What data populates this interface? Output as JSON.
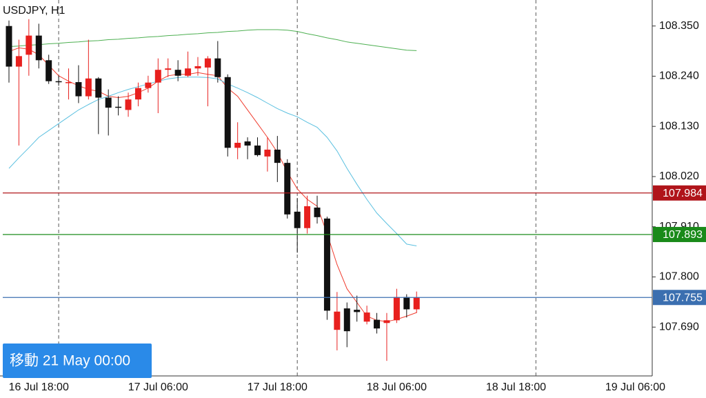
{
  "chart_data": {
    "type": "candlestick",
    "title": "USDJPY, H1",
    "badge": "移動 21 May 00:00",
    "categories": [
      null,
      null,
      null,
      "16 Jul 18:00",
      null,
      null,
      null,
      null,
      null,
      null,
      null,
      null,
      null,
      null,
      null,
      "17 Jul 06:00",
      null,
      null,
      null,
      null,
      null,
      null,
      null,
      null,
      null,
      null,
      null,
      "17 Jul 18:00",
      null,
      null,
      null,
      null,
      null,
      null,
      null,
      null,
      null,
      null,
      null,
      "18 Jul 06:00",
      null,
      null,
      null,
      null,
      null,
      null,
      null,
      null,
      null,
      null,
      null,
      "18 Jul 18:00",
      null,
      null,
      null,
      null,
      null,
      null,
      null,
      null,
      null,
      null,
      null,
      "19 Jul 06:00",
      null
    ],
    "open": [
      108.35,
      108.261,
      108.287,
      108.329,
      108.275,
      108.229,
      108.227,
      108.227,
      108.196,
      108.235,
      108.193,
      108.173,
      108.166,
      108.189,
      108.214,
      108.226,
      108.254,
      108.254,
      108.241,
      108.257,
      108.259,
      108.279,
      108.238,
      108.083,
      108.097,
      108.088,
      108.064,
      108.079,
      108.05,
      107.943,
      107.907,
      107.952,
      107.928,
      107.684,
      107.731,
      107.728,
      107.702,
      107.706,
      107.699,
      107.705,
      107.756,
      107.729,
      null,
      null,
      null,
      null,
      null,
      null,
      null,
      null,
      null,
      null,
      null,
      null,
      null,
      null,
      null,
      null,
      null,
      null,
      null,
      null,
      null,
      null,
      null
    ],
    "high": [
      108.362,
      108.32,
      108.365,
      108.355,
      108.287,
      108.241,
      108.257,
      108.264,
      108.32,
      108.238,
      108.211,
      108.196,
      108.204,
      108.226,
      108.241,
      108.279,
      108.279,
      108.275,
      108.294,
      108.282,
      108.284,
      108.317,
      108.244,
      108.139,
      108.106,
      108.106,
      108.106,
      108.109,
      108.058,
      107.973,
      107.978,
      107.978,
      107.932,
      107.767,
      107.744,
      107.759,
      107.737,
      107.721,
      107.721,
      107.774,
      107.762,
      107.768,
      null,
      null,
      null,
      null,
      null,
      null,
      null,
      null,
      null,
      null,
      null,
      null,
      null,
      null,
      null,
      null,
      null,
      null,
      null,
      null,
      null,
      null,
      null
    ],
    "low": [
      108.226,
      108.088,
      108.241,
      108.257,
      108.223,
      108.219,
      108.189,
      108.181,
      108.189,
      108.113,
      108.11,
      108.154,
      108.151,
      108.174,
      108.204,
      108.159,
      108.238,
      108.229,
      108.238,
      108.241,
      108.174,
      108.226,
      108.064,
      108.058,
      108.058,
      108.064,
      108.031,
      108.008,
      107.928,
      107.853,
      107.895,
      107.917,
      107.706,
      107.639,
      107.646,
      107.702,
      107.696,
      107.676,
      107.616,
      107.699,
      107.711,
      107.721,
      null,
      null,
      null,
      null,
      null,
      null,
      null,
      null,
      null,
      null,
      null,
      null,
      null,
      null,
      null,
      null,
      null,
      null,
      null,
      null,
      null,
      null,
      null
    ],
    "close": [
      108.261,
      108.284,
      108.329,
      108.275,
      108.229,
      108.227,
      108.227,
      108.196,
      108.235,
      108.193,
      108.171,
      108.172,
      108.189,
      108.214,
      108.226,
      108.254,
      108.257,
      108.241,
      108.257,
      108.262,
      108.279,
      108.238,
      108.083,
      108.094,
      108.088,
      108.067,
      108.079,
      108.05,
      107.937,
      107.907,
      107.955,
      107.931,
      107.726,
      107.724,
      107.681,
      107.723,
      107.722,
      107.687,
      107.705,
      107.756,
      107.729,
      107.755,
      null,
      null,
      null,
      null,
      null,
      null,
      null,
      null,
      null,
      null,
      null,
      null,
      null,
      null,
      null,
      null,
      null,
      null,
      null,
      null,
      null,
      null,
      null
    ],
    "up_color": "#e8201e",
    "down_color": "#111111",
    "lines": [
      {
        "color": "#f03c2e",
        "values": [
          108.294,
          108.302,
          108.299,
          108.287,
          108.264,
          108.241,
          108.229,
          108.219,
          108.211,
          108.207,
          108.196,
          108.193,
          108.196,
          108.204,
          108.214,
          108.229,
          108.241,
          108.244,
          108.244,
          108.248,
          108.244,
          108.241,
          108.214,
          108.196,
          108.166,
          108.136,
          108.106,
          108.073,
          108.03,
          107.993,
          107.97,
          107.955,
          107.895,
          107.827,
          107.774,
          107.744,
          107.714,
          107.705,
          107.702,
          107.707,
          107.714,
          107.722,
          null,
          null,
          null,
          null,
          null,
          null,
          null,
          null,
          null,
          null,
          null,
          null,
          null,
          null,
          null,
          null,
          null,
          null,
          null,
          null,
          null,
          null,
          null
        ]
      },
      {
        "color": "#5bc0e0",
        "values": [
          108.038,
          108.061,
          108.083,
          108.106,
          108.121,
          108.136,
          108.151,
          108.166,
          108.178,
          108.189,
          108.196,
          108.204,
          108.211,
          108.217,
          108.223,
          108.229,
          108.234,
          108.237,
          108.238,
          108.238,
          108.237,
          108.234,
          108.223,
          108.214,
          108.204,
          108.193,
          108.181,
          108.169,
          108.159,
          108.151,
          108.139,
          108.128,
          108.106,
          108.076,
          108.038,
          108.003,
          107.97,
          107.94,
          107.917,
          107.895,
          107.872,
          107.868,
          null,
          null,
          null,
          null,
          null,
          null,
          null,
          null,
          null,
          null,
          null,
          null,
          null,
          null,
          null,
          null,
          null,
          null,
          null,
          null,
          null,
          null,
          null
        ]
      },
      {
        "color": "#4caf50",
        "values": [
          108.305,
          108.306,
          108.308,
          108.309,
          108.311,
          108.312,
          108.314,
          108.315,
          108.317,
          108.318,
          108.32,
          108.321,
          108.323,
          108.324,
          108.326,
          108.327,
          108.329,
          108.33,
          108.332,
          108.333,
          108.335,
          108.336,
          108.338,
          108.339,
          108.341,
          108.342,
          108.342,
          108.342,
          108.341,
          108.338,
          108.333,
          108.329,
          108.324,
          108.32,
          108.315,
          108.312,
          108.309,
          108.306,
          108.303,
          108.3,
          108.297,
          108.296,
          null,
          null,
          null,
          null,
          null,
          null,
          null,
          null,
          null,
          null,
          null,
          null,
          null,
          null,
          null,
          null,
          null,
          null,
          null,
          null,
          null,
          null,
          null
        ]
      }
    ],
    "hlines": [
      {
        "value": 107.984,
        "color": "#b0141a"
      },
      {
        "value": 107.893,
        "color": "#1a8a1a"
      },
      {
        "value": 107.755,
        "color": "#3b6fb0"
      }
    ],
    "ylim": [
      107.583,
      108.407
    ],
    "yticks": [
      {
        "value": 108.35,
        "label": "108.350"
      },
      {
        "value": 108.24,
        "label": "108.240"
      },
      {
        "value": 108.13,
        "label": "108.130"
      },
      {
        "value": 108.02,
        "label": "108.020"
      },
      {
        "value": 107.91,
        "label": "107.910"
      },
      {
        "value": 107.8,
        "label": "107.800"
      },
      {
        "value": 107.69,
        "label": "107.690"
      }
    ],
    "grid": false
  }
}
